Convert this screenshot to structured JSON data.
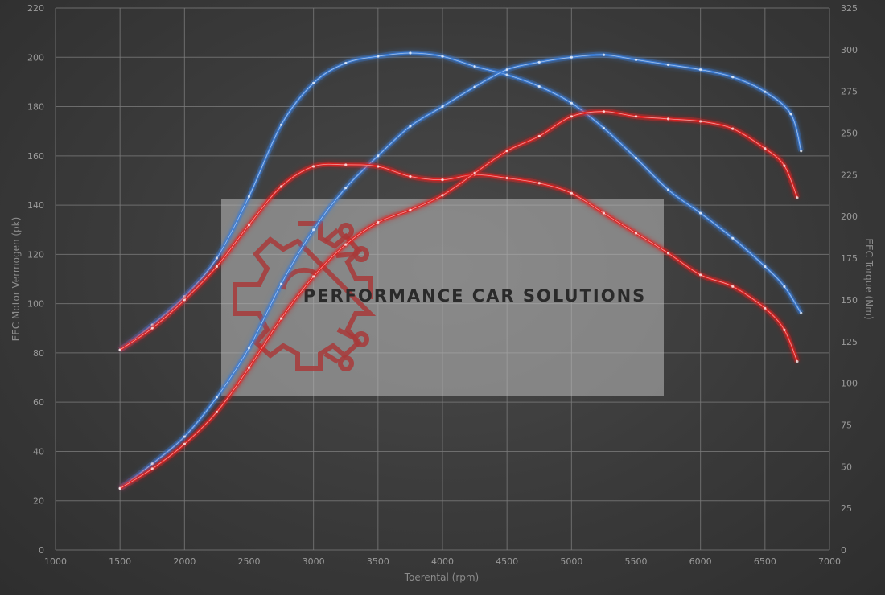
{
  "watermark": {
    "text": "PERFORMANCE CAR SOLUTIONS"
  },
  "colors": {
    "tuned": "#3a7bd5",
    "stock": "#e02020",
    "grid": "#7a7a7a",
    "background": "#3c3c3c"
  },
  "chart_data": {
    "type": "line",
    "title": "",
    "xlabel": "Toerental (rpm)",
    "ylabel": "EEC Motor Vermogen (pk)",
    "y2label": "EEC Torque (Nm)",
    "xlim": [
      1000,
      7000
    ],
    "ylim": [
      0,
      220
    ],
    "y2lim": [
      0,
      325
    ],
    "x_ticks": [
      1000,
      1500,
      2000,
      2500,
      3000,
      3500,
      4000,
      4500,
      5000,
      5500,
      6000,
      6500,
      7000
    ],
    "y_ticks": [
      0,
      20,
      40,
      60,
      80,
      100,
      120,
      140,
      160,
      180,
      200,
      220
    ],
    "y2_ticks": [
      0,
      25,
      50,
      75,
      100,
      125,
      150,
      175,
      200,
      225,
      250,
      275,
      300,
      325
    ],
    "grid": true,
    "series": [
      {
        "key": "tuned-torque",
        "axis": "right",
        "color": "#3a7bd5",
        "x": [
          1500,
          1750,
          2000,
          2250,
          2500,
          2750,
          3000,
          3250,
          3500,
          3750,
          4000,
          4250,
          4500,
          4750,
          5000,
          5250,
          5500,
          5750,
          6000,
          6250,
          6500,
          6650,
          6780
        ],
        "y": [
          120,
          135,
          152,
          175,
          212,
          255,
          280,
          292,
          296,
          298,
          296,
          290,
          285,
          278,
          268,
          253,
          235,
          216,
          202,
          187,
          170,
          158,
          142
        ]
      },
      {
        "key": "tuned-power",
        "axis": "left",
        "color": "#3a7bd5",
        "x": [
          1500,
          1750,
          2000,
          2250,
          2500,
          2750,
          3000,
          3250,
          3500,
          3750,
          4000,
          4250,
          4500,
          4750,
          5000,
          5250,
          5500,
          5750,
          6000,
          6250,
          6500,
          6700,
          6780
        ],
        "y": [
          25,
          35,
          46,
          62,
          82,
          108,
          130,
          147,
          160,
          172,
          180,
          188,
          195,
          198,
          200,
          201,
          199,
          197,
          195,
          192,
          186,
          177,
          162
        ]
      },
      {
        "key": "stock-torque",
        "axis": "right",
        "color": "#e02020",
        "x": [
          1500,
          1750,
          2000,
          2250,
          2500,
          2750,
          3000,
          3250,
          3500,
          3750,
          4000,
          4250,
          4500,
          4750,
          5000,
          5250,
          5500,
          5750,
          6000,
          6250,
          6500,
          6650,
          6750
        ],
        "y": [
          120,
          133,
          150,
          170,
          195,
          218,
          230,
          231,
          230,
          224,
          222,
          225,
          223,
          220,
          214,
          202,
          190,
          178,
          165,
          158,
          145,
          132,
          113
        ]
      },
      {
        "key": "stock-power",
        "axis": "left",
        "color": "#e02020",
        "x": [
          1500,
          1750,
          2000,
          2250,
          2500,
          2750,
          3000,
          3250,
          3500,
          3750,
          4000,
          4250,
          4500,
          4750,
          5000,
          5250,
          5500,
          5750,
          6000,
          6250,
          6500,
          6650,
          6750
        ],
        "y": [
          25,
          33,
          43,
          56,
          74,
          94,
          111,
          124,
          133,
          138,
          144,
          153,
          162,
          168,
          176,
          178,
          176,
          175,
          174,
          171,
          163,
          156,
          143
        ]
      }
    ]
  }
}
